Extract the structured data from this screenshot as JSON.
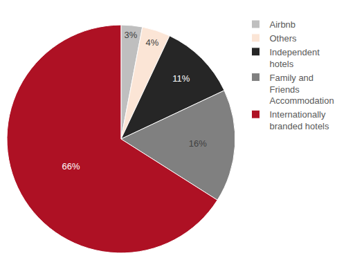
{
  "chart_data": {
    "type": "pie",
    "categories": [
      "Airbnb",
      "Others",
      "Independent hotels",
      "Family and Friends Accommodation",
      "Internationally branded hotels"
    ],
    "values": [
      3,
      4,
      11,
      16,
      66
    ],
    "value_labels": [
      "3%",
      "4%",
      "11%",
      "16%",
      "66%"
    ],
    "colors": [
      "#bfbfbf",
      "#fbe5d6",
      "#262626",
      "#808080",
      "#ae1124"
    ],
    "data_labels": true,
    "legend": "right"
  }
}
